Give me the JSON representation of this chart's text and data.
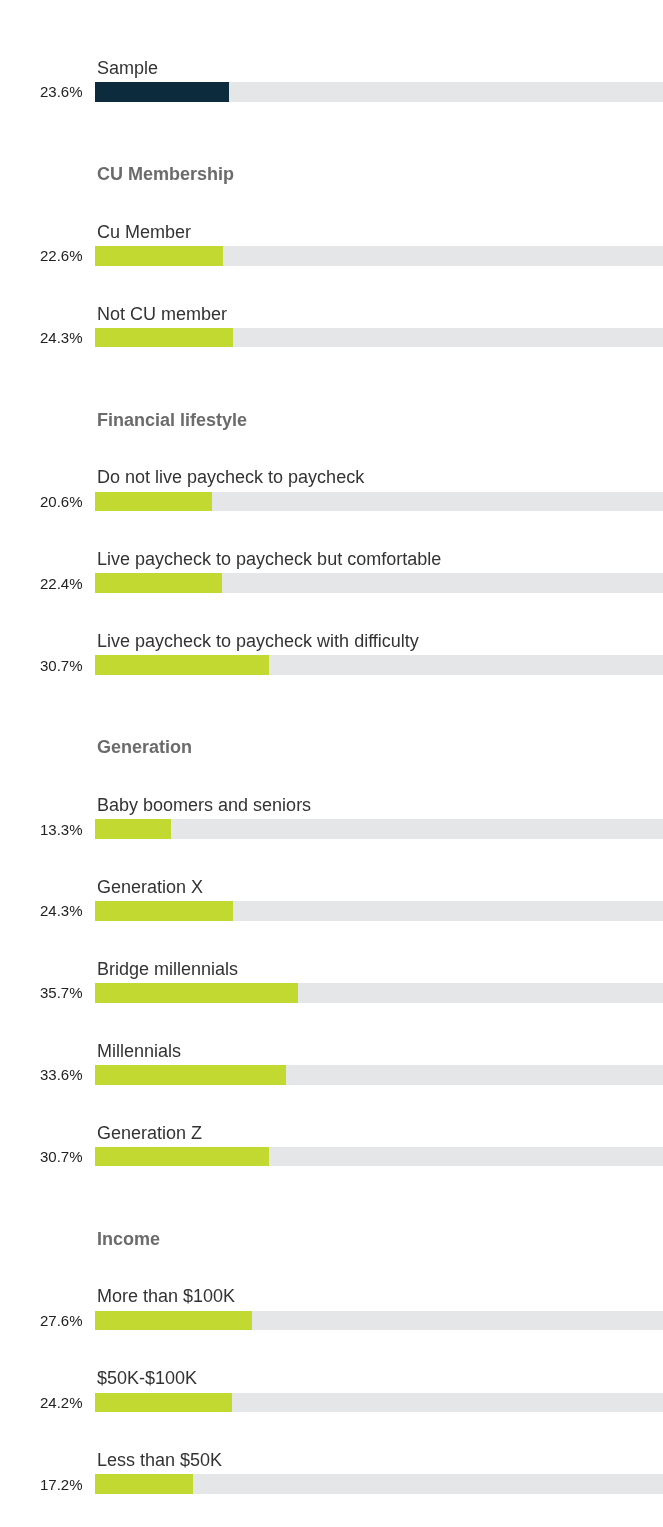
{
  "chart_data": {
    "type": "bar",
    "orientation": "horizontal",
    "stacked": true,
    "xlim": [
      0,
      100
    ],
    "tick_labels": false,
    "categories": [
      "Sample",
      "CU Membership",
      "Cu Member",
      "Not CU member",
      "Financial lifestyle",
      "Do not live paycheck to paycheck",
      "Live paycheck to paycheck but comfortable",
      "Live paycheck to paycheck with difficulty",
      "Generation",
      "Baby boomers and seniors",
      "Generation X",
      "Bridge millennials",
      "Millennials",
      "Generation Z",
      "Income",
      "More than $100K",
      "$50K-$100K",
      "Less than $50K"
    ],
    "series": [
      {
        "colors": [
          "#0c2b3c",
          null,
          "#c1d930",
          "#c1d930",
          null,
          "#c1d930",
          "#c1d930",
          "#c1d930",
          null,
          "#c1d930",
          "#c1d930",
          "#c1d930",
          "#c1d930",
          "#c1d930",
          null,
          "#c1d930",
          "#c1d930",
          "#c1d930"
        ],
        "values": [
          23.6,
          null,
          22.6,
          24.3,
          null,
          20.6,
          22.4,
          30.7,
          null,
          13.3,
          24.3,
          35.7,
          33.6,
          30.7,
          null,
          27.6,
          24.2,
          17.2
        ],
        "value_labels": [
          "23.6%",
          null,
          "22.6%",
          "24.3%",
          null,
          "20.6%",
          "22.4%",
          "30.7%",
          null,
          "13.3%",
          "24.3%",
          "35.7%",
          "33.6%",
          "30.7%",
          null,
          "27.6%",
          "24.2%",
          "17.2%"
        ]
      },
      {
        "color": "#e5e6e8",
        "values": [
          76.4,
          null,
          77.4,
          75.7,
          null,
          79.4,
          77.6,
          69.3,
          null,
          86.7,
          75.7,
          64.3,
          66.4,
          69.3,
          null,
          72.4,
          75.8,
          82.8
        ]
      }
    ]
  }
}
